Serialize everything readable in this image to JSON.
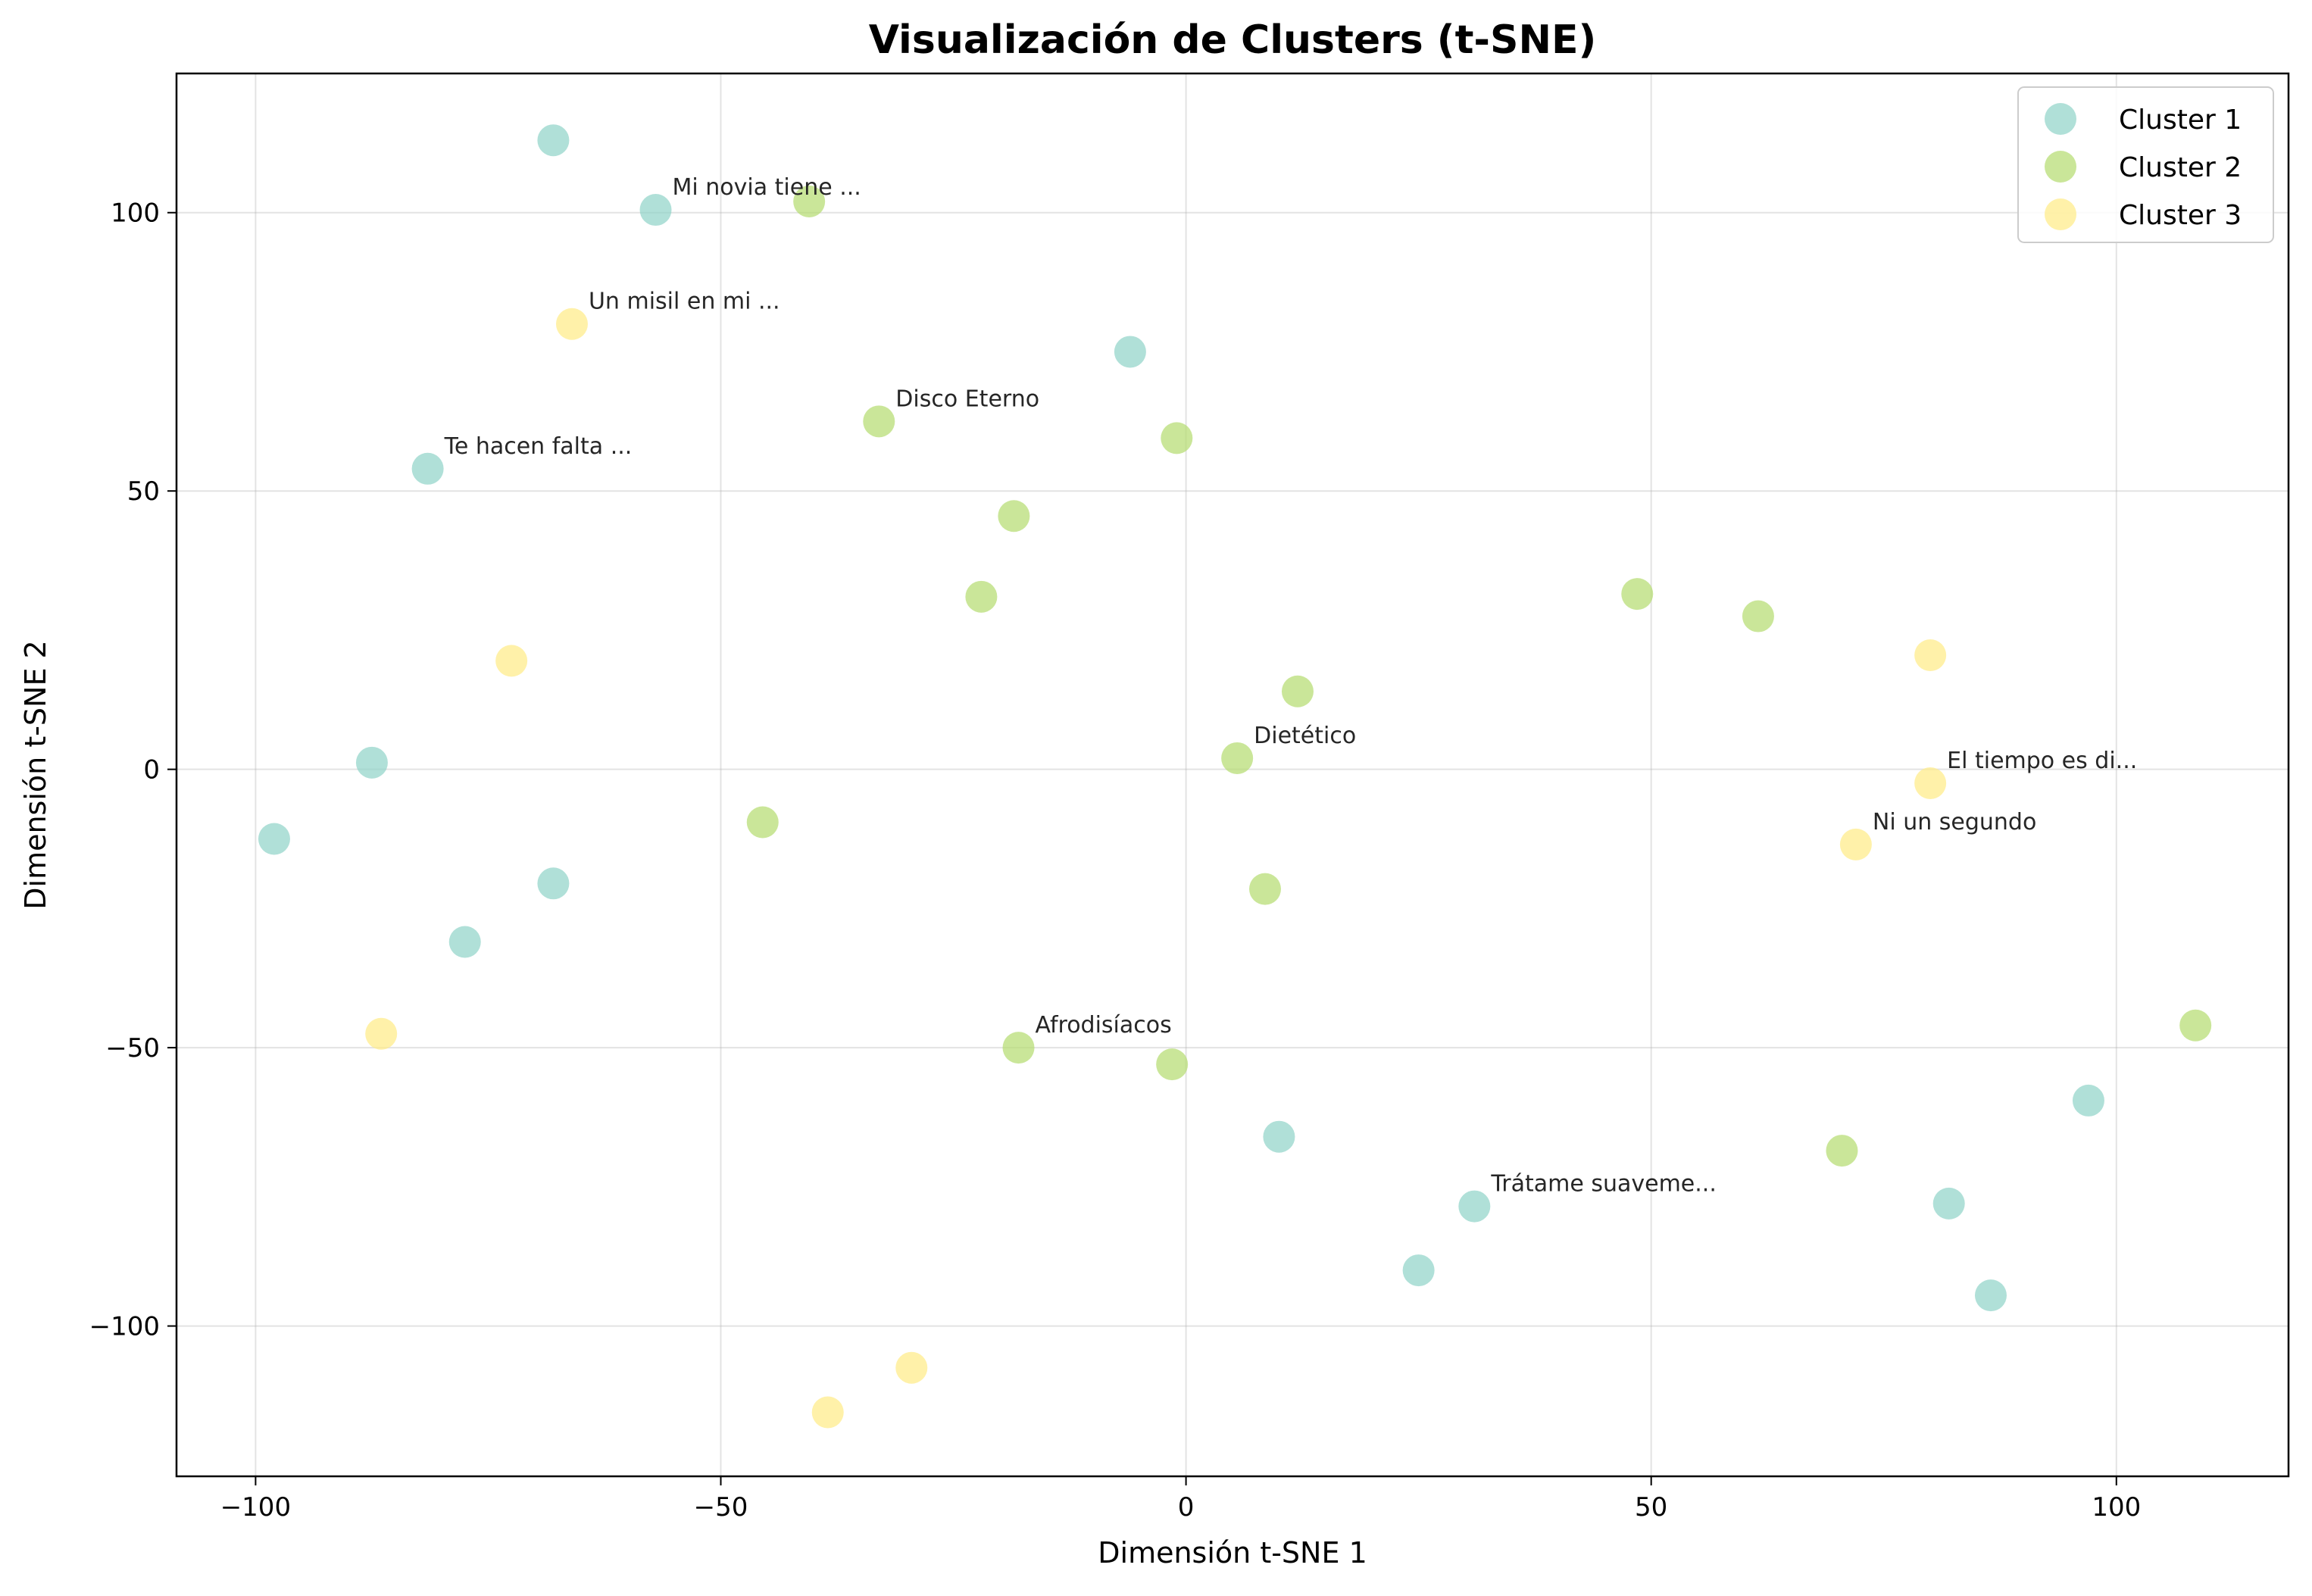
{
  "chart_data": {
    "type": "scatter",
    "title": "Visualización de Clusters (t-SNE)",
    "xlabel": "Dimensión t-SNE 1",
    "ylabel": "Dimensión t-SNE 2",
    "xlim": [
      -108.5,
      118.5
    ],
    "ylim": [
      -127,
      125
    ],
    "xticks": [
      -100,
      -50,
      0,
      50,
      100
    ],
    "yticks": [
      -100,
      -50,
      0,
      50,
      100
    ],
    "xtick_labels": [
      "−100",
      "−50",
      "0",
      "50",
      "100"
    ],
    "ytick_labels": [
      "−100",
      "−50",
      "0",
      "50",
      "100"
    ],
    "grid": true,
    "legend_position": "top-right",
    "series": [
      {
        "name": "Cluster 1",
        "color": "#8fd3c7",
        "points": [
          [
            -68,
            113
          ],
          [
            -57,
            100.5
          ],
          [
            -6,
            75
          ],
          [
            -81.5,
            54
          ],
          [
            -87.5,
            1.2
          ],
          [
            -98,
            -12.5
          ],
          [
            -68,
            -20.5
          ],
          [
            -77.5,
            -31
          ],
          [
            10,
            -66
          ],
          [
            31,
            -78.5
          ],
          [
            25,
            -90
          ],
          [
            82,
            -78
          ],
          [
            97,
            -59.5
          ],
          [
            86.5,
            -94.5
          ]
        ]
      },
      {
        "name": "Cluster 2",
        "color": "#b4dc6d",
        "points": [
          [
            -40.5,
            102
          ],
          [
            -33,
            62.5
          ],
          [
            -1,
            59.5
          ],
          [
            -18.5,
            45.5
          ],
          [
            -22,
            31
          ],
          [
            12,
            14
          ],
          [
            5.5,
            2
          ],
          [
            48.5,
            31.5
          ],
          [
            61.5,
            27.5
          ],
          [
            -45.5,
            -9.5
          ],
          [
            8.5,
            -21.5
          ],
          [
            -18,
            -50
          ],
          [
            -1.5,
            -53
          ],
          [
            70.5,
            -68.5
          ],
          [
            108.5,
            -46
          ]
        ]
      },
      {
        "name": "Cluster 3",
        "color": "#ffeb85",
        "points": [
          [
            -66,
            80
          ],
          [
            -72.5,
            19.5
          ],
          [
            -86.5,
            -47.5
          ],
          [
            80,
            20.5
          ],
          [
            80,
            -2.5
          ],
          [
            72,
            -13.5
          ],
          [
            -29.5,
            -107.5
          ],
          [
            -38.5,
            -115.5
          ]
        ]
      }
    ],
    "annotations": [
      {
        "text": "Mi novia tiene ...",
        "x": -57,
        "y": 100.5
      },
      {
        "text": "Un misil en mi ...",
        "x": -66,
        "y": 80
      },
      {
        "text": "Disco Eterno",
        "x": -33,
        "y": 62.5
      },
      {
        "text": "Te hacen falta ...",
        "x": -81.5,
        "y": 54
      },
      {
        "text": "Dietético",
        "x": 5.5,
        "y": 2
      },
      {
        "text": "El tiempo es di...",
        "x": 80,
        "y": -2.5
      },
      {
        "text": "Ni un segundo",
        "x": 72,
        "y": -13.5
      },
      {
        "text": "Afrodisíacos",
        "x": -18,
        "y": -50
      },
      {
        "text": "Trátame suaveme...",
        "x": 31,
        "y": -78.5
      }
    ]
  }
}
